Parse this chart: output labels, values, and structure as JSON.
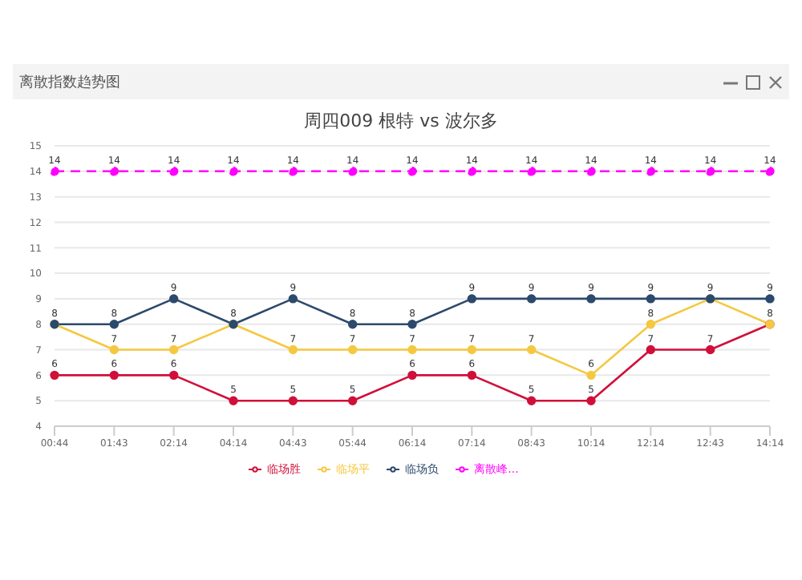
{
  "chart_data": {
    "type": "line",
    "title": "周四009 根特 vs 波尔多",
    "annotations": [
      "离散指数趋势图"
    ],
    "categories": [
      "00:44",
      "01:43",
      "02:14",
      "04:14",
      "04:43",
      "05:44",
      "06:14",
      "07:14",
      "08:43",
      "10:14",
      "12:14",
      "12:43",
      "14:14"
    ],
    "series": [
      {
        "name": "临场胜",
        "color": "#d0103a",
        "values": [
          6,
          6,
          6,
          5,
          5,
          5,
          6,
          6,
          5,
          5,
          7,
          7,
          8
        ]
      },
      {
        "name": "临场平",
        "color": "#f5c842",
        "values": [
          8,
          7,
          7,
          8,
          7,
          7,
          7,
          7,
          7,
          6,
          8,
          9,
          8
        ],
        "value_labels": [
          "8",
          "7",
          "7",
          "8",
          "7",
          "7",
          "7",
          "7",
          "7",
          "6",
          "8",
          "9",
          null
        ]
      },
      {
        "name": "临场负",
        "color": "#2c4a6b",
        "values": [
          8,
          8,
          9,
          8,
          9,
          8,
          8,
          9,
          9,
          9,
          9,
          9,
          9
        ],
        "value_labels": [
          null,
          "8",
          "9",
          null,
          "9",
          "8",
          "8",
          "9",
          "9",
          "9",
          "9",
          null,
          "9"
        ]
      },
      {
        "name": "离散峰...",
        "color": "#ff00ff",
        "line_style": "dashed",
        "values": [
          14,
          14,
          14,
          14,
          14,
          14,
          14,
          14,
          14,
          14,
          14,
          14,
          14
        ]
      }
    ],
    "ylim": [
      4,
      15
    ],
    "yticks": [
      4,
      5,
      6,
      7,
      8,
      9,
      10,
      11,
      12,
      13,
      14,
      15
    ],
    "grid": "y",
    "legend": "bottom",
    "marker": "circle",
    "line_style": "solid",
    "data_labels": true
  }
}
